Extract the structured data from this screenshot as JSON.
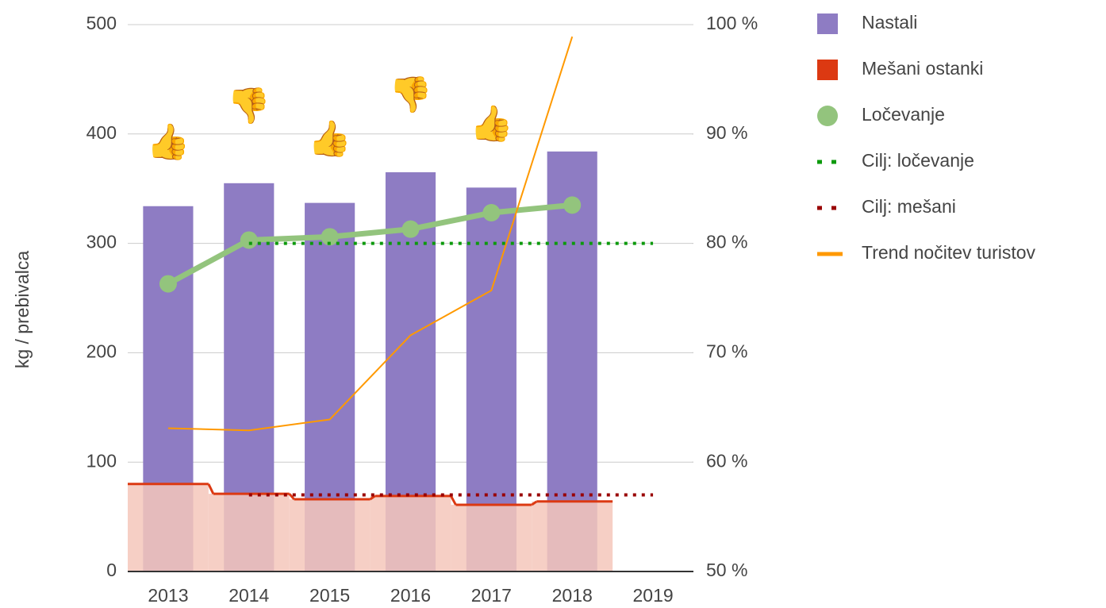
{
  "chart_data": {
    "type": "combo",
    "y_axis_label": "kg / prebivalca",
    "categories": [
      "2013",
      "2014",
      "2015",
      "2016",
      "2017",
      "2018",
      "2019"
    ],
    "ylim": [
      0,
      500
    ],
    "yticks": [
      0,
      100,
      200,
      300,
      400,
      500
    ],
    "y2lim": [
      50,
      100
    ],
    "y2ticks": [
      {
        "value": 50,
        "label": "50 %"
      },
      {
        "value": 60,
        "label": "60 %"
      },
      {
        "value": 70,
        "label": "70 %"
      },
      {
        "value": 80,
        "label": "80 %"
      },
      {
        "value": 90,
        "label": "90 %"
      },
      {
        "value": 100,
        "label": "100 %"
      }
    ],
    "grid": true,
    "legend": "right",
    "annotations": [
      "👍",
      "👎",
      "👍",
      "👎",
      "👍",
      null,
      null
    ],
    "series": [
      {
        "name": "Nastali",
        "type": "bar",
        "color": "#8e7cc3",
        "values": [
          334,
          355,
          337,
          365,
          351,
          384,
          null
        ]
      },
      {
        "name": "Mešani ostanki",
        "type": "stepped-area",
        "color": "#dc3912",
        "fill": "#f4c7bb",
        "values": [
          80,
          71,
          66,
          69,
          61,
          64,
          null
        ]
      },
      {
        "name": "Ločevanje",
        "type": "line",
        "axis": "y2",
        "color": "#93c47d",
        "points": true,
        "values": [
          76.3,
          80.3,
          80.6,
          81.3,
          82.8,
          83.5,
          null
        ]
      },
      {
        "name": "Cilj: ločevanje",
        "type": "line",
        "axis": "y2",
        "dotted": true,
        "color": "#0c9a0c",
        "values": [
          null,
          80,
          80,
          80,
          80,
          80,
          80
        ]
      },
      {
        "name": "Cilj: mešani",
        "type": "line",
        "dotted": true,
        "color": "#990000",
        "values": [
          null,
          70,
          70,
          70,
          70,
          70,
          70
        ]
      },
      {
        "name": "Trend nočitev turistov",
        "type": "line",
        "axis": "y2",
        "color": "#ff9900",
        "thin": true,
        "values": [
          63.1,
          62.9,
          63.9,
          71.6,
          75.7,
          98.9,
          null
        ]
      }
    ]
  }
}
